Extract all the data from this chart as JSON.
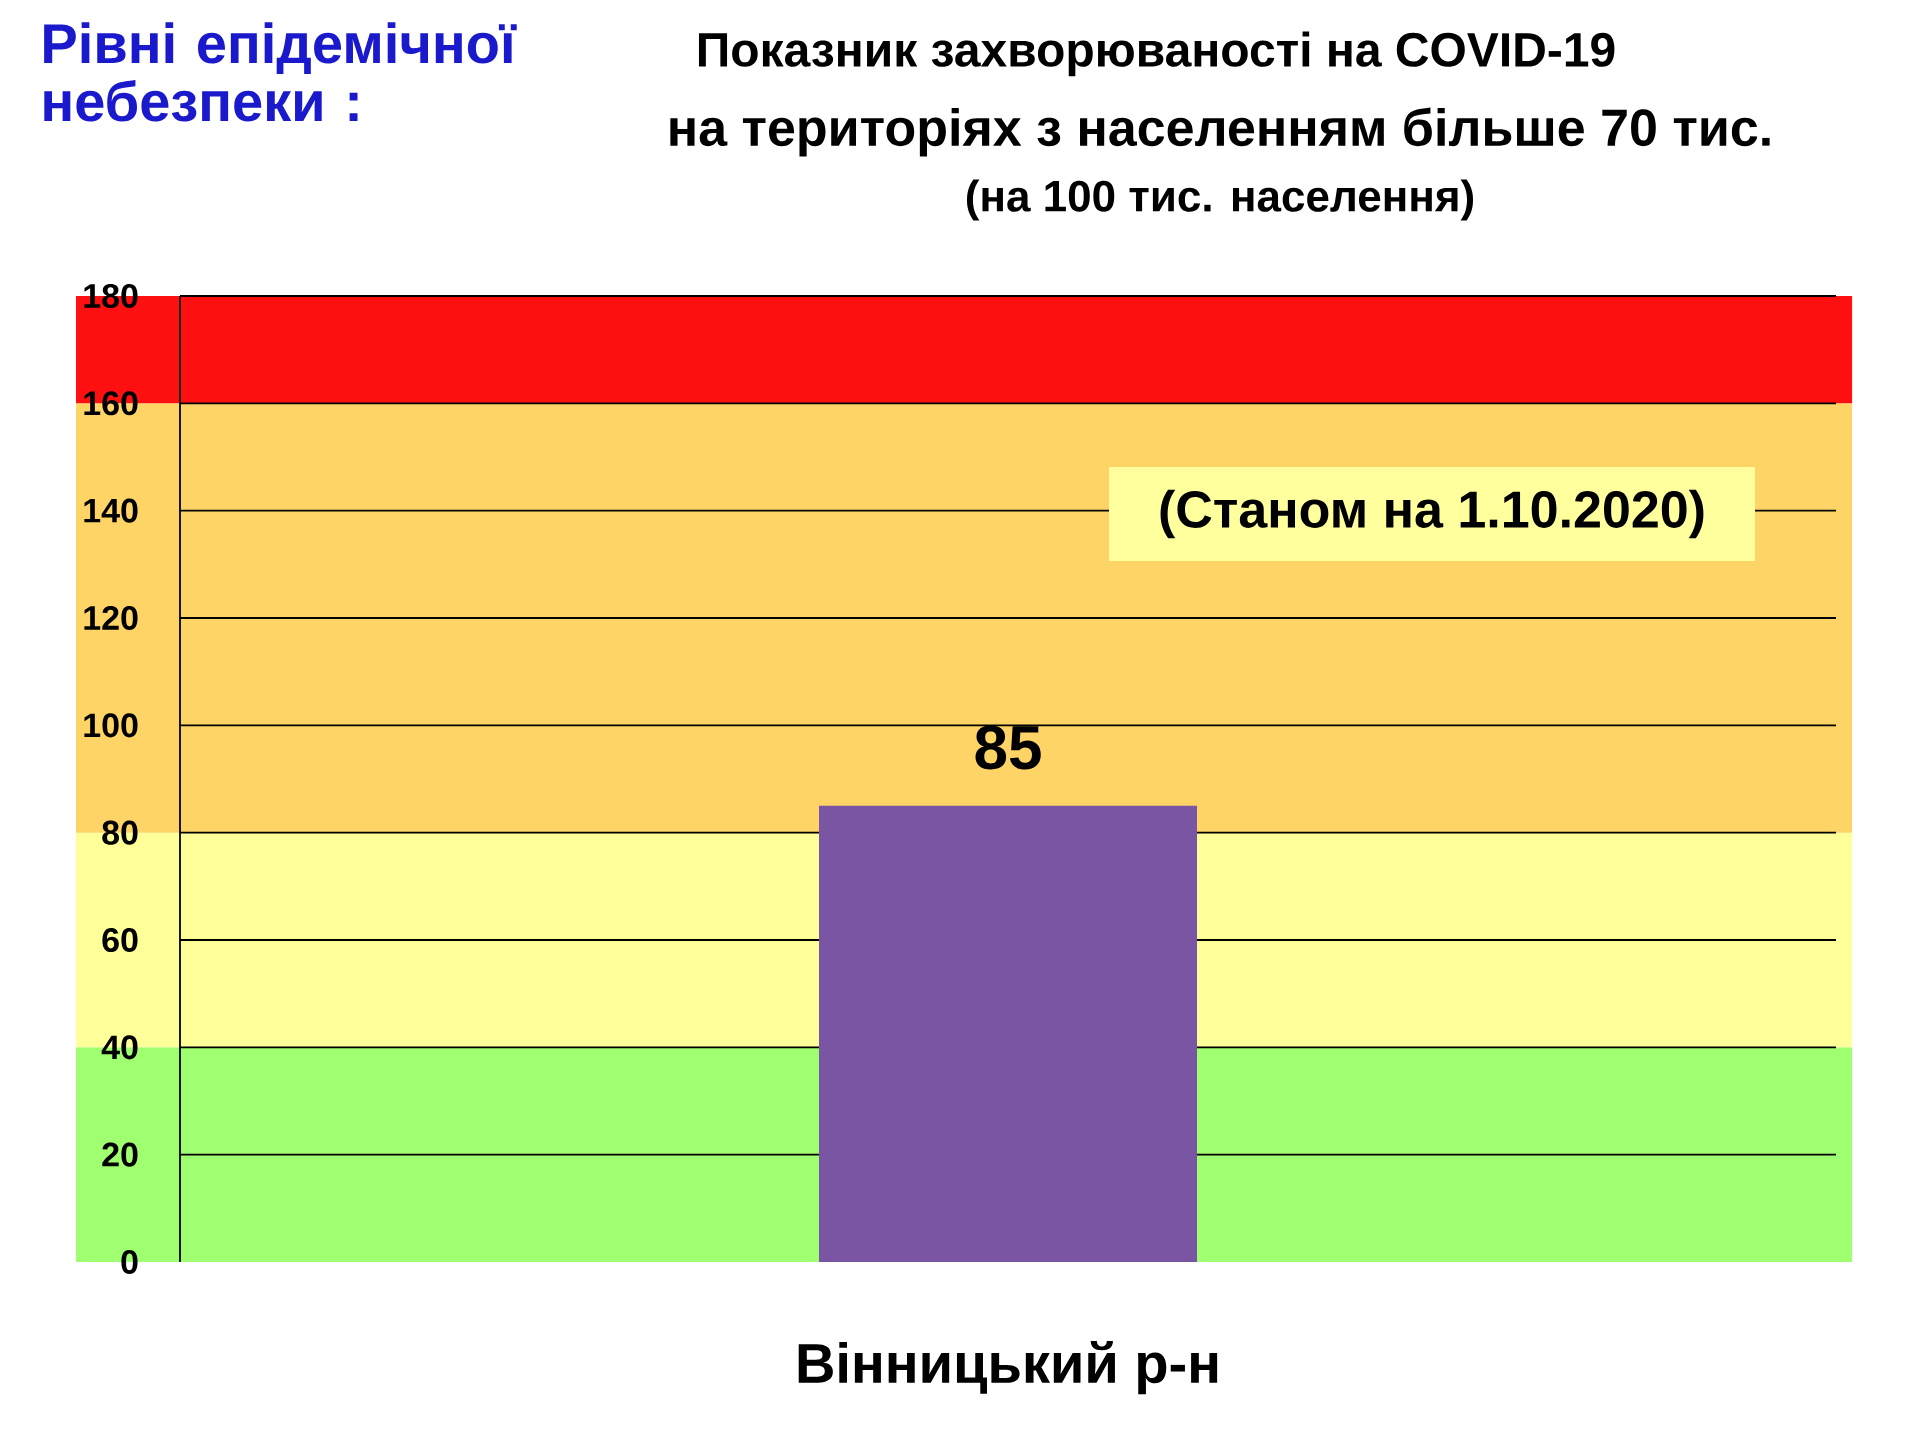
{
  "chart_data": {
    "type": "bar",
    "title": "Показник захворюваності на COVID-19",
    "subtitle": "на територіях з населенням більше 70 тис.",
    "annotations": [
      "(на 100 тис. населення)",
      "Рівні епідемічної небезпеки :",
      "(Станом на 1.10.2020)"
    ],
    "categories": [
      "Вінницький р-н"
    ],
    "values": [
      85
    ],
    "color": "#7a55a3",
    "data_labels": true,
    "ylim": [
      0,
      180
    ],
    "yticks": [
      0,
      20,
      40,
      60,
      80,
      100,
      120,
      140,
      160,
      180
    ],
    "grid": "y",
    "bands": [
      {
        "axis": "y",
        "from": 0,
        "to": 40,
        "color": "#a0ff70"
      },
      {
        "axis": "y",
        "from": 40,
        "to": 80,
        "color": "#ffff99"
      },
      {
        "axis": "y",
        "from": 80,
        "to": 160,
        "color": "#ffd466"
      },
      {
        "axis": "y",
        "from": 160,
        "to": 180,
        "color": "#ff1010"
      }
    ]
  }
}
